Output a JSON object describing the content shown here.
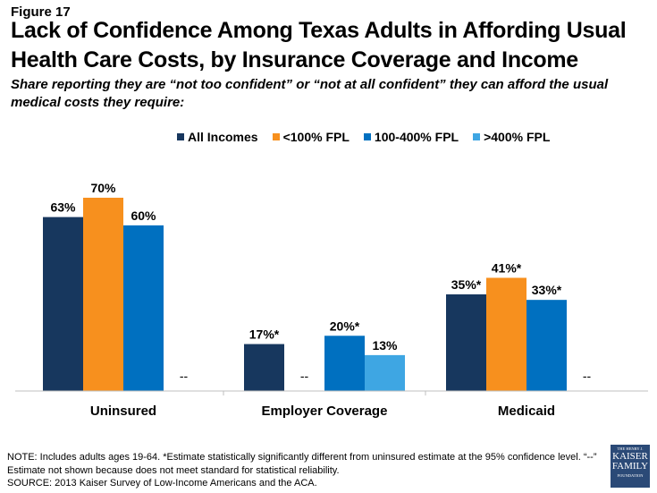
{
  "figure_label": "Figure 17",
  "colors": {
    "All Incomes": "#17375e",
    "<100% FPL": "#f7901e",
    "100-400% FPL": "#0070c0",
    ">400% FPL": "#3ea6e3"
  },
  "chart_data": {
    "type": "bar",
    "title": "Lack of Confidence Among Texas Adults in Affording Usual Health Care Costs, by Insurance Coverage and Income",
    "subtitle": "Share reporting they are “not too confident” or “not at all confident” they can afford the usual medical costs they require:",
    "categories": [
      "Uninsured",
      "Employer Coverage",
      "Medicaid"
    ],
    "series": [
      {
        "name": "All Incomes",
        "values": [
          63,
          17,
          35
        ],
        "labels": [
          "63%",
          "17%*",
          "35%*"
        ]
      },
      {
        "name": "<100% FPL",
        "values": [
          70,
          null,
          41
        ],
        "labels": [
          "70%",
          "--",
          "41%*"
        ]
      },
      {
        "name": "100-400% FPL",
        "values": [
          60,
          20,
          33
        ],
        "labels": [
          "60%",
          "20%*",
          "33%*"
        ]
      },
      {
        "name": ">400% FPL",
        "values": [
          null,
          13,
          null
        ],
        "labels": [
          "--",
          "13%",
          "--"
        ]
      }
    ],
    "xlabel": "",
    "ylabel": "",
    "ylim": [
      0,
      70
    ],
    "grid": false,
    "legend": "top-center"
  },
  "footer": {
    "note": "NOTE: Includes adults ages 19-64. *Estimate statistically significantly different from uninsured estimate at the 95% confidence level. “--” Estimate not shown because does not meet standard for statistical reliability.",
    "source": "SOURCE: 2013 Kaiser Survey of Low-Income Americans and the ACA."
  },
  "logo": {
    "line1": "THE HENRY J.",
    "line2": "KAISER",
    "line3": "FAMILY",
    "line4": "FOUNDATION"
  }
}
